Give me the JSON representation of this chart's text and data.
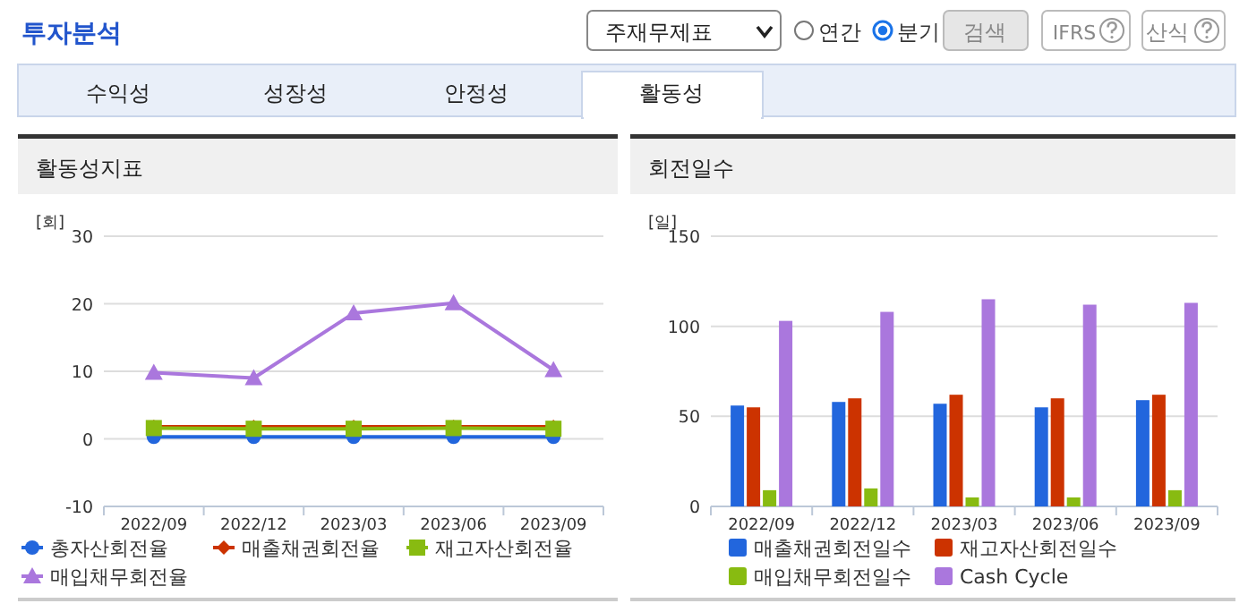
{
  "chart_data": [
    {
      "type": "line",
      "title": "활동성지표",
      "ylabel": "[회]",
      "categories": [
        "2022/09",
        "2022/12",
        "2023/03",
        "2023/06",
        "2023/09"
      ],
      "ylim": [
        -10,
        30
      ],
      "yticks": [
        -10,
        0,
        10,
        20,
        30
      ],
      "grid": "y",
      "legend": "bottom",
      "annotations": [
        "투자분석",
        "주재무제표",
        "연간",
        "분기",
        "검색",
        "IFRS",
        "산식",
        "수익성",
        "성장성",
        "안정성",
        "활동성"
      ],
      "series": [
        {
          "name": "총자산회전율",
          "color": "#2266dd",
          "marker": "circle",
          "values": [
            0.3,
            0.3,
            0.3,
            0.3,
            0.3
          ]
        },
        {
          "name": "매출채권회전율",
          "color": "#cc3300",
          "marker": "diamond",
          "values": [
            1.8,
            1.8,
            1.8,
            1.8,
            1.8
          ]
        },
        {
          "name": "재고자산회전율",
          "color": "#88bb11",
          "marker": "square",
          "values": [
            1.6,
            1.5,
            1.5,
            1.6,
            1.5
          ]
        },
        {
          "name": "매입채무회전율",
          "color": "#aa77dd",
          "marker": "triangle",
          "values": [
            9.8,
            9.0,
            18.6,
            20.1,
            10.2
          ]
        }
      ]
    },
    {
      "type": "bar",
      "title": "회전일수",
      "ylabel": "[일]",
      "categories": [
        "2022/09",
        "2022/12",
        "2023/03",
        "2023/06",
        "2023/09"
      ],
      "ylim": [
        0,
        150
      ],
      "yticks": [
        0,
        50,
        100,
        150
      ],
      "grid": "y",
      "legend": "bottom",
      "series": [
        {
          "name": "매출채권회전일수",
          "color": "#2266dd",
          "values": [
            56,
            58,
            57,
            55,
            59
          ]
        },
        {
          "name": "재고자산회전일수",
          "color": "#cc3300",
          "values": [
            55,
            60,
            62,
            60,
            62
          ]
        },
        {
          "name": "매입채무회전일수",
          "color": "#88bb11",
          "values": [
            9,
            10,
            5,
            5,
            9
          ]
        },
        {
          "name": "Cash Cycle",
          "color": "#aa77dd",
          "values": [
            103,
            108,
            115,
            112,
            113
          ]
        }
      ]
    }
  ]
}
